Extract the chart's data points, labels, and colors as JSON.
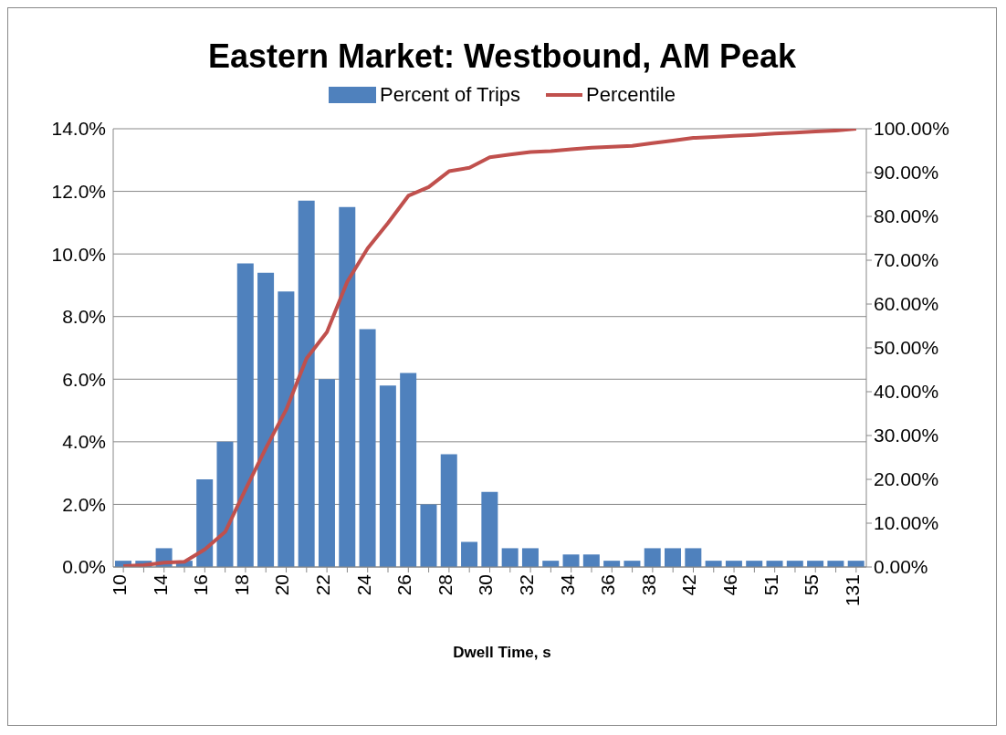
{
  "chart_data": {
    "type": "bar",
    "title": "Eastern Market: Westbound, AM Peak",
    "xlabel": "Dwell Time, s",
    "categories": [
      "10",
      null,
      "14",
      null,
      "16",
      null,
      "18",
      null,
      "20",
      null,
      "22",
      null,
      "24",
      null,
      "26",
      null,
      "28",
      null,
      "30",
      null,
      "32",
      null,
      "34",
      null,
      "36",
      null,
      "38",
      null,
      "42",
      null,
      "46",
      null,
      "51",
      null,
      "55",
      null,
      "131"
    ],
    "series": [
      {
        "name": "Percent of Trips",
        "color": "#4f81bd",
        "values": [
          0.2,
          0.2,
          0.6,
          0.2,
          2.8,
          4.0,
          9.7,
          9.4,
          8.8,
          11.7,
          6.0,
          11.5,
          7.6,
          5.8,
          6.2,
          2.0,
          3.6,
          0.8,
          2.4,
          0.6,
          0.6,
          0.2,
          0.4,
          0.4,
          0.2,
          0.2,
          0.6,
          0.6,
          0.6,
          0.2,
          0.2,
          0.2,
          0.2,
          0.2,
          0.2,
          0.2,
          0.2
        ]
      },
      {
        "name": "Percentile",
        "type": "line",
        "axis": "y2",
        "color": "#c0504d",
        "values": [
          0.2,
          0.4,
          1.0,
          1.2,
          4.0,
          8.0,
          17.7,
          27.1,
          35.9,
          47.6,
          53.6,
          65.1,
          72.7,
          78.5,
          84.7,
          86.7,
          90.3,
          91.1,
          93.5,
          94.1,
          94.7,
          94.9,
          95.3,
          95.7,
          95.9,
          96.1,
          96.7,
          97.3,
          97.9,
          98.1,
          98.4,
          98.6,
          98.9,
          99.1,
          99.4,
          99.6,
          100
        ]
      }
    ],
    "ylim": [
      0,
      14
    ],
    "yticks": [
      {
        "value": 0,
        "label": "0.0%"
      },
      {
        "value": 2,
        "label": "2.0%"
      },
      {
        "value": 4,
        "label": "4.0%"
      },
      {
        "value": 6,
        "label": "6.0%"
      },
      {
        "value": 8,
        "label": "8.0%"
      },
      {
        "value": 10,
        "label": "10.0%"
      },
      {
        "value": 12,
        "label": "12.0%"
      },
      {
        "value": 14,
        "label": "14.0%"
      }
    ],
    "y2lim": [
      0,
      100
    ],
    "y2ticks": [
      {
        "value": 0,
        "label": "0.00%"
      },
      {
        "value": 10,
        "label": "10.00%"
      },
      {
        "value": 20,
        "label": "20.00%"
      },
      {
        "value": 30,
        "label": "30.00%"
      },
      {
        "value": 40,
        "label": "40.00%"
      },
      {
        "value": 50,
        "label": "50.00%"
      },
      {
        "value": 60,
        "label": "60.00%"
      },
      {
        "value": 70,
        "label": "70.00%"
      },
      {
        "value": 80,
        "label": "80.00%"
      },
      {
        "value": 90,
        "label": "90.00%"
      },
      {
        "value": 100,
        "label": "100.00%"
      }
    ],
    "grid": "y",
    "legend": "top",
    "marker": "none",
    "line_style": "solid"
  }
}
